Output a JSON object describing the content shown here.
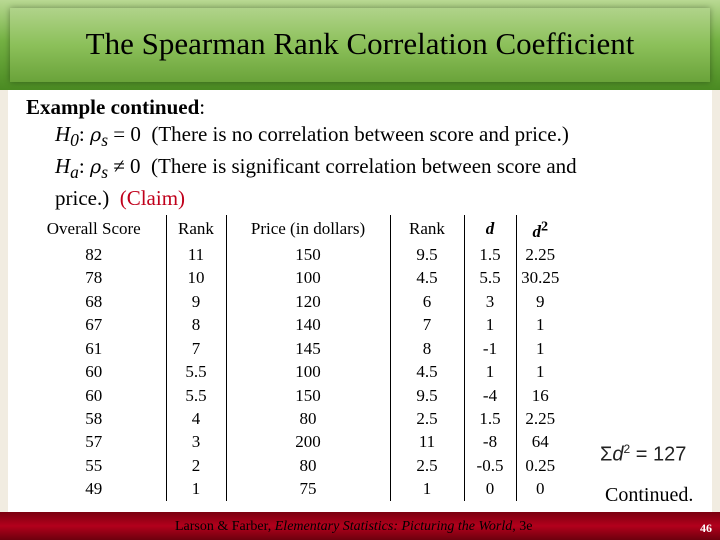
{
  "title": "The Spearman Rank Correlation Coefficient",
  "intro": {
    "label": "Example continued",
    "colon": ":"
  },
  "h0": {
    "h": "H",
    "sub": "0",
    "colon": ":",
    "rho": "ρ",
    "s": "s",
    "rel": "= 0",
    "text": "(There is no correlation between score and price.)"
  },
  "ha": {
    "h": "H",
    "sub": "a",
    "colon": ":",
    "rho": "ρ",
    "s": "s",
    "rel": "≠ 0",
    "text": "(There is significant correlation between score and",
    "text2": "price.)",
    "claim": "(Claim)"
  },
  "table": {
    "headers": [
      "Overall Score",
      "Rank",
      "Price (in dollars)",
      "Rank",
      "d",
      "d",
      "2"
    ],
    "rows": [
      [
        "82",
        "11",
        "150",
        "9.5",
        "1.5",
        "2.25"
      ],
      [
        "78",
        "10",
        "100",
        "4.5",
        "5.5",
        "30.25"
      ],
      [
        "68",
        "9",
        "120",
        "6",
        "3",
        "9"
      ],
      [
        "67",
        "8",
        "140",
        "7",
        "1",
        "1"
      ],
      [
        "61",
        "7",
        "145",
        "8",
        "-1",
        "1"
      ],
      [
        "60",
        "5.5",
        "100",
        "4.5",
        "1",
        "1"
      ],
      [
        "60",
        "5.5",
        "150",
        "9.5",
        "-4",
        "16"
      ],
      [
        "58",
        "4",
        "80",
        "2.5",
        "1.5",
        "2.25"
      ],
      [
        "57",
        "3",
        "200",
        "11",
        "-8",
        "64"
      ],
      [
        "55",
        "2",
        "80",
        "2.5",
        "-0.5",
        "0.25"
      ],
      [
        "49",
        "1",
        "75",
        "1",
        "0",
        "0"
      ]
    ]
  },
  "sum": {
    "sigma": "Σ",
    "d": "d",
    "exp": "2",
    "eq": "= 127"
  },
  "continued": "Continued.",
  "footer": {
    "authors": "Larson & Farber,",
    "book": "Elementary Statistics: Picturing the World",
    "edition": ", 3e"
  },
  "page_number": "46",
  "colors": {
    "title_green": "#8cc05a",
    "footer_red": "#b3001c",
    "claim_red": "#c0001b",
    "background": "#f1ece1"
  }
}
